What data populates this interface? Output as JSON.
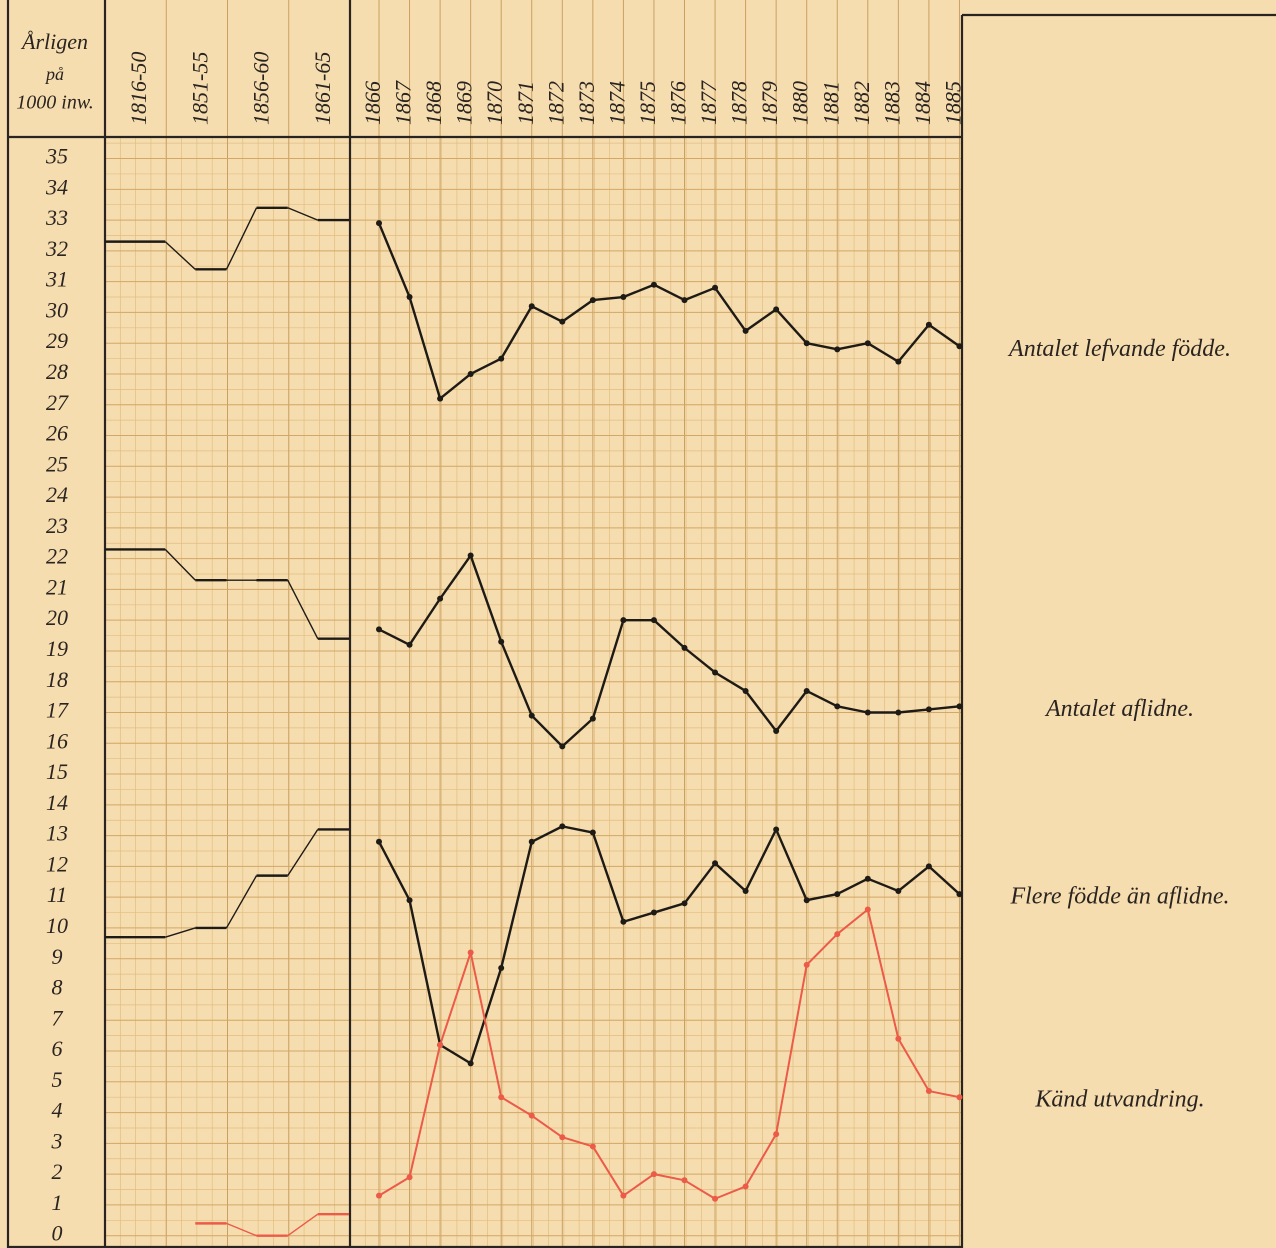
{
  "chart_data": {
    "type": "line",
    "ylabel_lines": [
      "Årligen",
      "på",
      "1000 inw."
    ],
    "categories": [
      "1816-50",
      "1851-55",
      "1856-60",
      "1861-65",
      "1866",
      "1867",
      "1868",
      "1869",
      "1870",
      "1871",
      "1872",
      "1873",
      "1874",
      "1875",
      "1876",
      "1877",
      "1878",
      "1879",
      "1880",
      "1881",
      "1882",
      "1883",
      "1884",
      "1885"
    ],
    "periods": 4,
    "ylim": [
      -0.4,
      35.7
    ],
    "yticks": [
      0,
      1,
      2,
      3,
      4,
      5,
      6,
      7,
      8,
      9,
      10,
      11,
      12,
      13,
      14,
      15,
      16,
      17,
      18,
      19,
      20,
      21,
      22,
      23,
      24,
      25,
      26,
      27,
      28,
      29,
      30,
      31,
      32,
      33,
      34,
      35
    ],
    "grid": true,
    "series": [
      {
        "name": "Antalet lefvande födde.",
        "color": "#1e1a16",
        "values": [
          32.3,
          31.4,
          33.4,
          33.0,
          32.9,
          30.5,
          27.2,
          28.0,
          28.5,
          30.2,
          29.7,
          30.4,
          30.5,
          30.9,
          30.4,
          30.8,
          29.4,
          30.1,
          29.0,
          28.8,
          29.0,
          28.4,
          29.6,
          28.9
        ]
      },
      {
        "name": "Antalet aflidne.",
        "color": "#1e1a16",
        "values": [
          22.3,
          21.3,
          21.3,
          19.4,
          19.7,
          19.2,
          20.7,
          22.1,
          19.3,
          16.9,
          15.9,
          16.8,
          20.0,
          20.0,
          19.1,
          18.3,
          17.7,
          16.4,
          17.7,
          17.2,
          17.0,
          17.0,
          17.1,
          17.2
        ]
      },
      {
        "name": "Flere födde än aflidne.",
        "color": "#1e1a16",
        "values": [
          9.7,
          10.0,
          11.7,
          13.2,
          12.8,
          10.9,
          6.2,
          5.6,
          8.7,
          12.8,
          13.3,
          13.1,
          10.2,
          10.5,
          10.8,
          12.1,
          11.2,
          13.2,
          10.9,
          11.1,
          11.6,
          11.2,
          12.0,
          11.1
        ]
      },
      {
        "name": "Känd utvandring.",
        "color": "#ec5a48",
        "values": [
          null,
          0.4,
          0.0,
          0.7,
          1.3,
          1.9,
          6.2,
          9.2,
          4.5,
          3.9,
          3.2,
          2.9,
          1.3,
          2.0,
          1.8,
          1.2,
          1.6,
          3.3,
          8.8,
          9.8,
          10.6,
          6.4,
          4.7,
          4.5
        ]
      }
    ]
  }
}
